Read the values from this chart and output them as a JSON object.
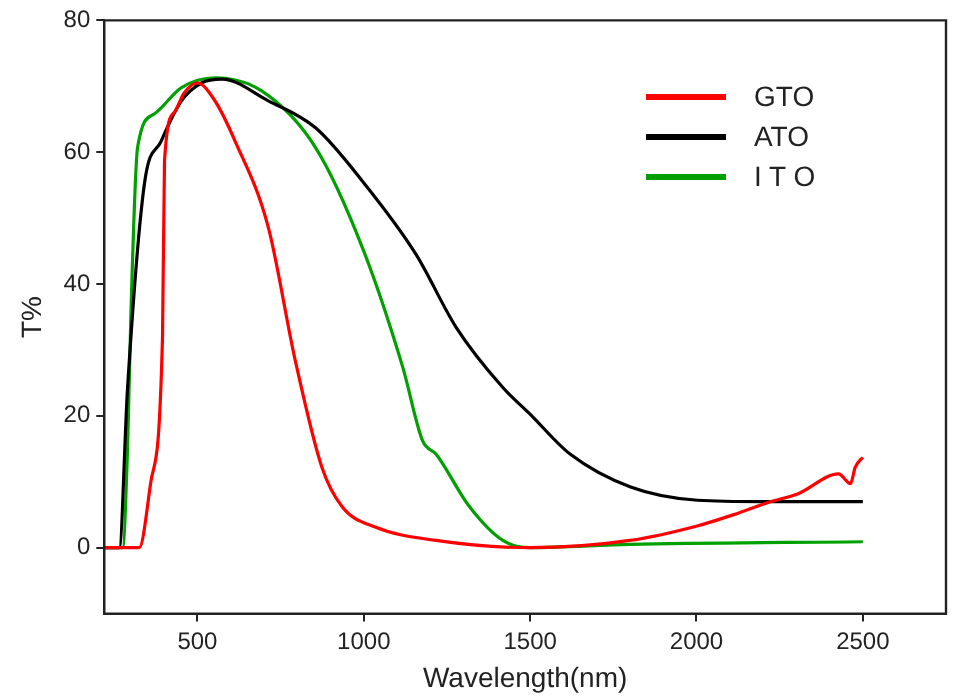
{
  "chart_data": {
    "type": "line",
    "xlabel": "Wavelength(nm)",
    "ylabel": "T%",
    "xlim": [
      220,
      2750
    ],
    "xticks": [
      500,
      1000,
      1500,
      2000,
      2500
    ],
    "ylim": [
      -10,
      80
    ],
    "yticks": [
      0,
      20,
      40,
      60,
      80
    ],
    "grid": false,
    "legend": "top right",
    "marker": "none",
    "line_style": "solid",
    "series": [
      {
        "name": "GTO",
        "color": "#ff0000",
        "x": [
          220,
          325,
          360,
          395,
          401,
          430,
          460,
          500,
          550,
          613,
          713,
          794,
          874,
          935,
          1036,
          1217,
          1500,
          1800,
          2002,
          2123,
          2224,
          2306,
          2427,
          2463,
          2477,
          2500
        ],
        "values": [
          0,
          0,
          10,
          32,
          58.7,
          66,
          69,
          70.5,
          68,
          61.7,
          48.6,
          28.4,
          12.2,
          6.2,
          3.1,
          1.1,
          0,
          1.1,
          3.3,
          5.2,
          7,
          8.2,
          11.2,
          9.7,
          12.2,
          13.7
        ]
      },
      {
        "name": "ATO",
        "color": "#000000",
        "x": [
          220,
          265,
          290,
          340,
          391,
          452,
          512,
          573,
          713,
          855,
          996,
          1157,
          1278,
          1418,
          1499,
          1620,
          1802,
          2003,
          2200,
          2500
        ],
        "values": [
          0,
          0,
          24.3,
          55,
          61.7,
          67.8,
          70.5,
          71.1,
          67.8,
          63.7,
          55.6,
          44.5,
          33.4,
          24.3,
          20.3,
          14.2,
          9.2,
          7.2,
          7,
          7
        ]
      },
      {
        "name": "I T O",
        "color": "#00a000",
        "x": [
          220,
          275,
          290,
          300,
          320,
          370,
          452,
          553,
          693,
          855,
          996,
          1117,
          1177,
          1217,
          1318,
          1418,
          1500,
          1800,
          2500
        ],
        "values": [
          0,
          0,
          15.2,
          35.5,
          60.7,
          65.8,
          69.8,
          71.3,
          69.3,
          60.7,
          45.5,
          27.4,
          16.2,
          14.2,
          6.2,
          1.1,
          0,
          0.5,
          0.9
        ]
      }
    ]
  }
}
